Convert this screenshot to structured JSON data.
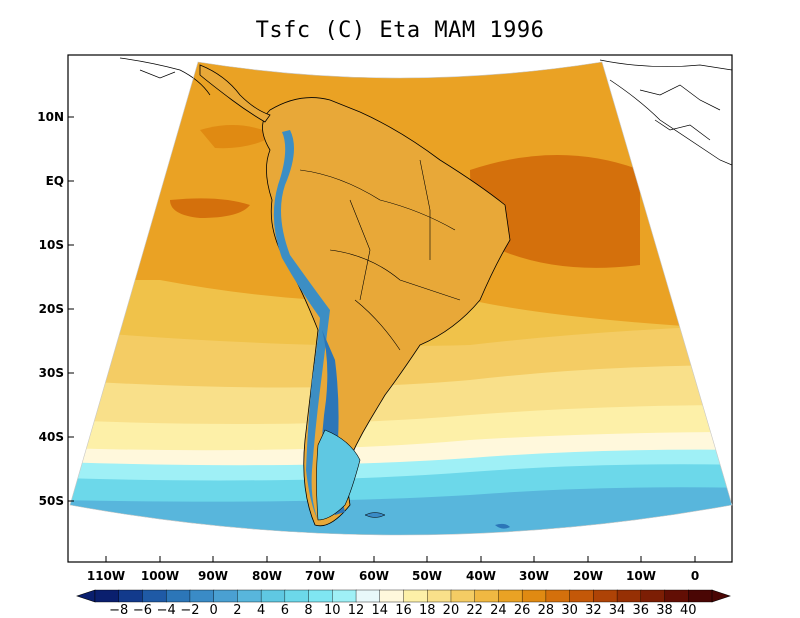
{
  "title": "Tsfc (C) Eta MAM 1996",
  "lat_axis": {
    "labels": [
      "10N",
      "EQ",
      "10S",
      "20S",
      "30S",
      "40S",
      "50S"
    ]
  },
  "lon_axis": {
    "labels": [
      "110W",
      "100W",
      "90W",
      "80W",
      "70W",
      "60W",
      "50W",
      "40W",
      "30W",
      "20W",
      "10W",
      "0"
    ]
  },
  "colorbar": {
    "labels": [
      "−8",
      "−6",
      "−4",
      "−2",
      "0",
      "2",
      "4",
      "6",
      "8",
      "10",
      "12",
      "14",
      "16",
      "18",
      "20",
      "22",
      "24",
      "26",
      "28",
      "30",
      "32",
      "34",
      "36",
      "38",
      "40"
    ],
    "colors": [
      "#0a1f6e",
      "#123a8c",
      "#1f5aa6",
      "#2c76b8",
      "#3a8bc6",
      "#4aa0d2",
      "#58b6dc",
      "#5fc8e2",
      "#6cd8ea",
      "#7fe6f2",
      "#9ff0f6",
      "#e8f8fa",
      "#fff8dc",
      "#fdf0a8",
      "#f9e08a",
      "#f4cc64",
      "#f0b842",
      "#eaa224",
      "#e08a12",
      "#d4700c",
      "#c45808",
      "#ae4306",
      "#963004",
      "#7c1e04",
      "#620e04",
      "#4a0604"
    ]
  },
  "colors": {
    "ocean_tropics": "#e8a020",
    "ocean_hot": "#d8680c",
    "ocean_mid": "#f0c24a",
    "ocean_cool": "#f6dc82",
    "ocean_subpolar": "#5ed6e8",
    "land_warm": "#e8a838",
    "andes_cold": "#3c8ec4"
  }
}
